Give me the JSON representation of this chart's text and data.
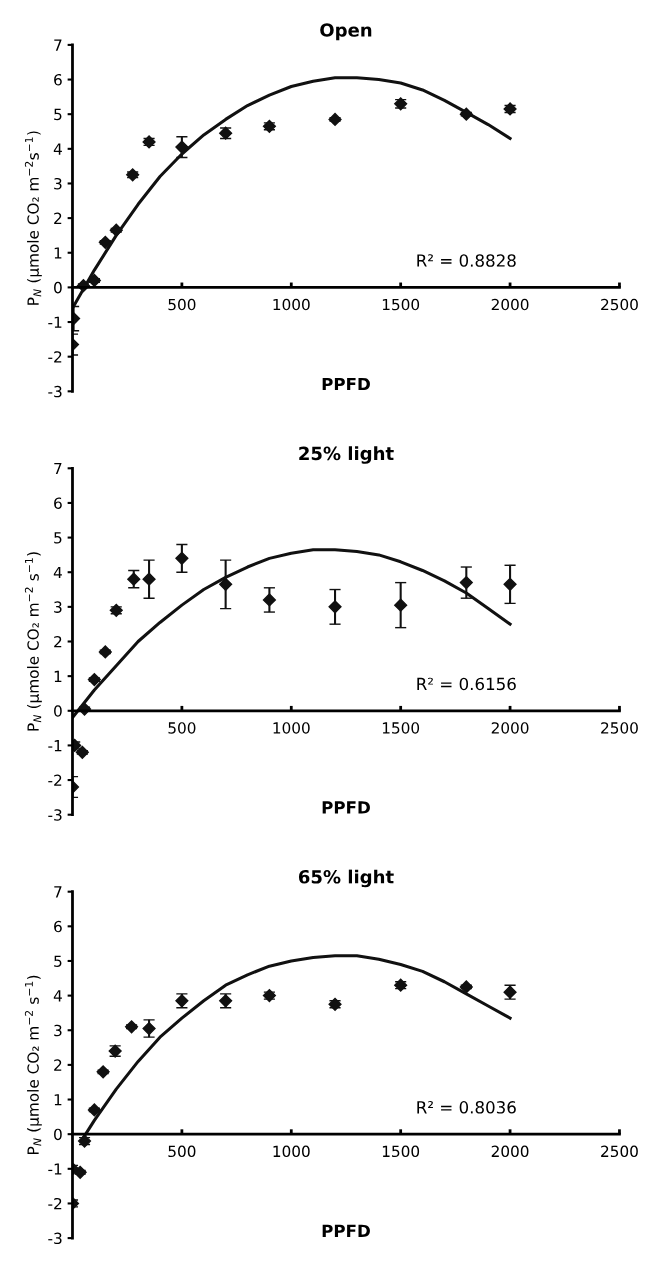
{
  "chart_data": [
    {
      "type": "scatter",
      "title": "Open",
      "xlabel": "PPFD",
      "ylabel": "P$_{N}$ (µmole CO₂ m$^{−2}$s$^{−1}$)",
      "xlim": [
        0,
        2500
      ],
      "ylim": [
        -3,
        7
      ],
      "xticks": [
        500,
        1000,
        1500,
        2000,
        2500
      ],
      "yticks": [
        -3,
        -2,
        -1,
        0,
        1,
        2,
        3,
        4,
        5,
        6,
        7
      ],
      "marker": "diamond",
      "grid": false,
      "annotations": [
        "R² = 0.8828"
      ],
      "series": [
        {
          "color": "#111111",
          "x": [
            0,
            5,
            50,
            100,
            150,
            200,
            275,
            350,
            500,
            700,
            900,
            1200,
            1500,
            1800,
            2000
          ],
          "values": [
            -1.65,
            -0.9,
            0.05,
            0.2,
            1.3,
            1.65,
            3.25,
            4.2,
            4.05,
            4.45,
            4.65,
            4.85,
            5.3,
            5.0,
            5.15
          ],
          "errors": [
            0.3,
            0.35,
            0.05,
            0.05,
            0.05,
            0.05,
            0.08,
            0.1,
            0.3,
            0.15,
            0.1,
            0.05,
            0.12,
            0.05,
            0.1
          ]
        },
        {
          "type": "line",
          "marker": "none",
          "color": "#111111",
          "x": [
            0,
            100,
            200,
            300,
            400,
            500,
            600,
            700,
            800,
            900,
            1000,
            1100,
            1200,
            1300,
            1400,
            1500,
            1600,
            1700,
            1800,
            1900,
            2000
          ],
          "values": [
            -0.6,
            0.5,
            1.5,
            2.4,
            3.2,
            3.85,
            4.4,
            4.85,
            5.25,
            5.55,
            5.8,
            5.95,
            6.05,
            6.05,
            6.0,
            5.9,
            5.7,
            5.4,
            5.05,
            4.7,
            4.3
          ]
        }
      ]
    },
    {
      "type": "scatter",
      "title": "25% light",
      "xlabel": "PPFD",
      "ylabel": "P$_{N}$ (µmole CO₂ m$^{−2}$ s$^{−1}$)",
      "xlim": [
        0,
        2500
      ],
      "ylim": [
        -3,
        7
      ],
      "xticks": [
        500,
        1000,
        1500,
        2000,
        2500
      ],
      "yticks": [
        -3,
        -2,
        -1,
        0,
        1,
        2,
        3,
        4,
        5,
        6,
        7
      ],
      "marker": "diamond",
      "grid": false,
      "annotations": [
        "R² = 0.6156"
      ],
      "series": [
        {
          "color": "#111111",
          "x": [
            0,
            10,
            45,
            55,
            100,
            150,
            200,
            280,
            350,
            500,
            700,
            900,
            1200,
            1500,
            1800,
            2000
          ],
          "values": [
            -2.2,
            -1.0,
            -1.2,
            0.05,
            0.9,
            1.7,
            2.9,
            3.8,
            3.8,
            4.4,
            3.65,
            3.2,
            3.0,
            3.05,
            3.7,
            3.65
          ],
          "errors": [
            0.3,
            0.1,
            0.05,
            0.05,
            0.05,
            0.05,
            0.1,
            0.25,
            0.55,
            0.4,
            0.7,
            0.35,
            0.5,
            0.65,
            0.45,
            0.55
          ]
        },
        {
          "type": "line",
          "marker": "none",
          "color": "#111111",
          "x": [
            0,
            100,
            200,
            300,
            400,
            500,
            600,
            700,
            800,
            900,
            1000,
            1100,
            1200,
            1300,
            1400,
            1500,
            1600,
            1700,
            1800,
            1900,
            2000
          ],
          "values": [
            -0.2,
            0.6,
            1.3,
            2.0,
            2.55,
            3.05,
            3.5,
            3.85,
            4.15,
            4.4,
            4.55,
            4.65,
            4.65,
            4.6,
            4.5,
            4.3,
            4.05,
            3.75,
            3.4,
            2.95,
            2.5
          ]
        }
      ]
    },
    {
      "type": "scatter",
      "title": "65% light",
      "xlabel": "PPFD",
      "ylabel": "P$_{N}$ (µmole CO₂ m$^{−2}$ s$^{−1}$)",
      "xlim": [
        0,
        2500
      ],
      "ylim": [
        -3,
        7
      ],
      "xticks": [
        500,
        1000,
        1500,
        2000,
        2500
      ],
      "yticks": [
        -3,
        -2,
        -1,
        0,
        1,
        2,
        3,
        4,
        5,
        6,
        7
      ],
      "marker": "diamond",
      "grid": false,
      "annotations": [
        "R² = 0.8036"
      ],
      "series": [
        {
          "color": "#111111",
          "x": [
            0,
            0,
            35,
            55,
            100,
            140,
            195,
            270,
            350,
            500,
            700,
            900,
            1200,
            1500,
            1800,
            2000
          ],
          "values": [
            -2.0,
            -1.0,
            -1.1,
            -0.2,
            0.7,
            1.8,
            2.4,
            3.1,
            3.05,
            3.85,
            3.85,
            4.0,
            3.75,
            4.3,
            4.25,
            4.1
          ],
          "errors": [
            0.1,
            0.1,
            0.05,
            0.1,
            0.05,
            0.05,
            0.15,
            0.05,
            0.25,
            0.2,
            0.2,
            0.1,
            0.1,
            0.1,
            0.05,
            0.2
          ]
        },
        {
          "type": "line",
          "marker": "none",
          "color": "#111111",
          "x": [
            50,
            100,
            200,
            300,
            400,
            500,
            600,
            700,
            800,
            900,
            1000,
            1100,
            1200,
            1300,
            1400,
            1500,
            1600,
            1700,
            1800,
            1900,
            2000
          ],
          "values": [
            -0.1,
            0.4,
            1.3,
            2.1,
            2.8,
            3.35,
            3.85,
            4.3,
            4.6,
            4.85,
            5.0,
            5.1,
            5.15,
            5.15,
            5.05,
            4.9,
            4.7,
            4.4,
            4.05,
            3.7,
            3.35
          ]
        }
      ]
    }
  ]
}
